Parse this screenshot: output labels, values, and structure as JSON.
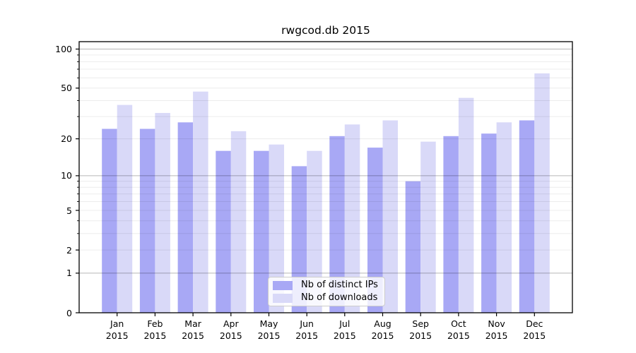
{
  "chart_data": {
    "type": "bar",
    "title": "rwgcod.db 2015",
    "categories": [
      "Jan 2015",
      "Feb 2015",
      "Mar 2015",
      "Apr 2015",
      "May 2015",
      "Jun 2015",
      "Jul 2015",
      "Aug 2015",
      "Sep 2015",
      "Oct 2015",
      "Nov 2015",
      "Dec 2015"
    ],
    "series": [
      {
        "name": "Nb of distinct IPs",
        "color": "#a8a8f5",
        "values": [
          24,
          24,
          27,
          16,
          16,
          12,
          21,
          17,
          9,
          21,
          22,
          28
        ]
      },
      {
        "name": "Nb of downloads",
        "color": "#d9d9f8",
        "values": [
          37,
          32,
          47,
          23,
          18,
          16,
          26,
          28,
          19,
          42,
          27,
          65
        ]
      }
    ],
    "xlabel": "",
    "ylabel": "",
    "yscale": "log1p",
    "ylim": [
      0,
      112
    ],
    "y_tick_labels": [
      100,
      50,
      20,
      10,
      5,
      2,
      1,
      0
    ],
    "grid": {
      "on": true,
      "major_lines_at": [
        1,
        10,
        100
      ],
      "minor_lines_at": [
        2,
        3,
        4,
        5,
        6,
        7,
        8,
        9,
        20,
        30,
        40,
        50,
        60,
        70,
        80,
        90
      ]
    },
    "legend": {
      "position": "lower center"
    }
  }
}
